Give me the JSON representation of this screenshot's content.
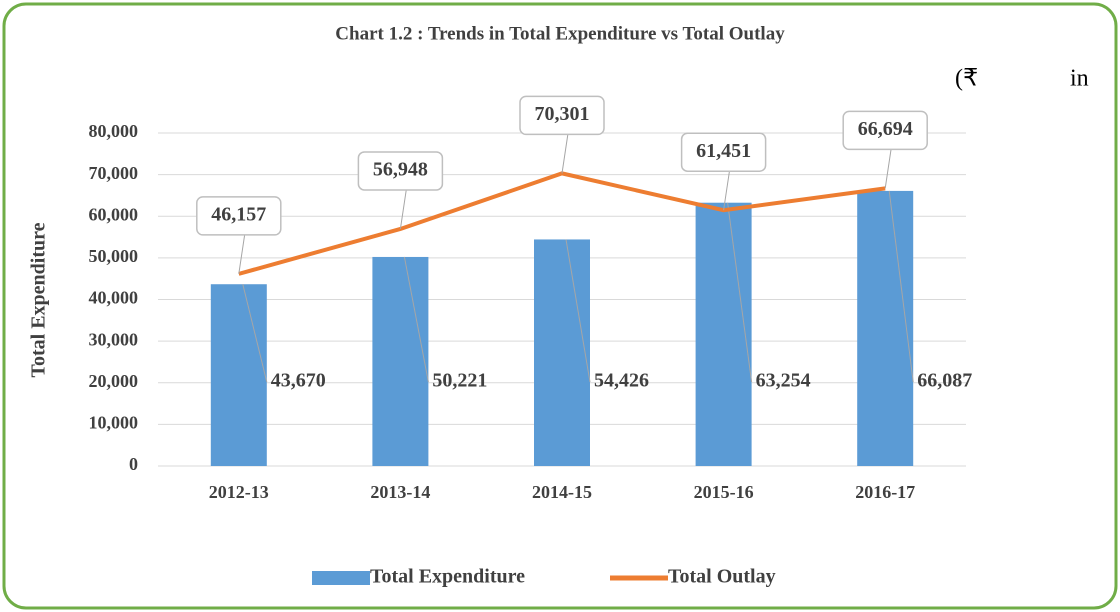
{
  "chart_data": {
    "type": "bar",
    "title": "Chart 1.2 : Trends in Total Expenditure vs Total Outlay",
    "annotations": [
      "(₹",
      "in"
    ],
    "y_label": "Total Expenditure",
    "categories": [
      "2012-13",
      "2013-14",
      "2014-15",
      "2015-16",
      "2016-17"
    ],
    "series": [
      {
        "name": "Total Expenditure",
        "type": "bar",
        "color": "#5b9bd5",
        "values": [
          43670,
          50221,
          54426,
          63254,
          66087
        ],
        "value_labels": [
          "43,670",
          "50,221",
          "54,426",
          "63,254",
          "66,087"
        ]
      },
      {
        "name": "Total Outlay",
        "type": "line",
        "color": "#ed7d31",
        "values": [
          46157,
          56948,
          70301,
          61451,
          66694
        ],
        "value_labels": [
          "46,157",
          "56,948",
          "70,301",
          "61,451",
          "66,694"
        ]
      }
    ],
    "ylim": [
      0,
      80000
    ],
    "yticks": [
      0,
      {
        "value": 10000,
        "label": "10,000"
      },
      {
        "value": 20000,
        "label": "20,000"
      },
      {
        "value": 30000,
        "label": "30,000"
      },
      {
        "value": 40000,
        "label": "40,000"
      },
      {
        "value": 50000,
        "label": "50,000"
      },
      {
        "value": 60000,
        "label": "60,000"
      },
      {
        "value": 70000,
        "label": "70,000"
      },
      {
        "value": 80000,
        "label": "80,000"
      }
    ],
    "grid": true,
    "legend": "bottom"
  }
}
